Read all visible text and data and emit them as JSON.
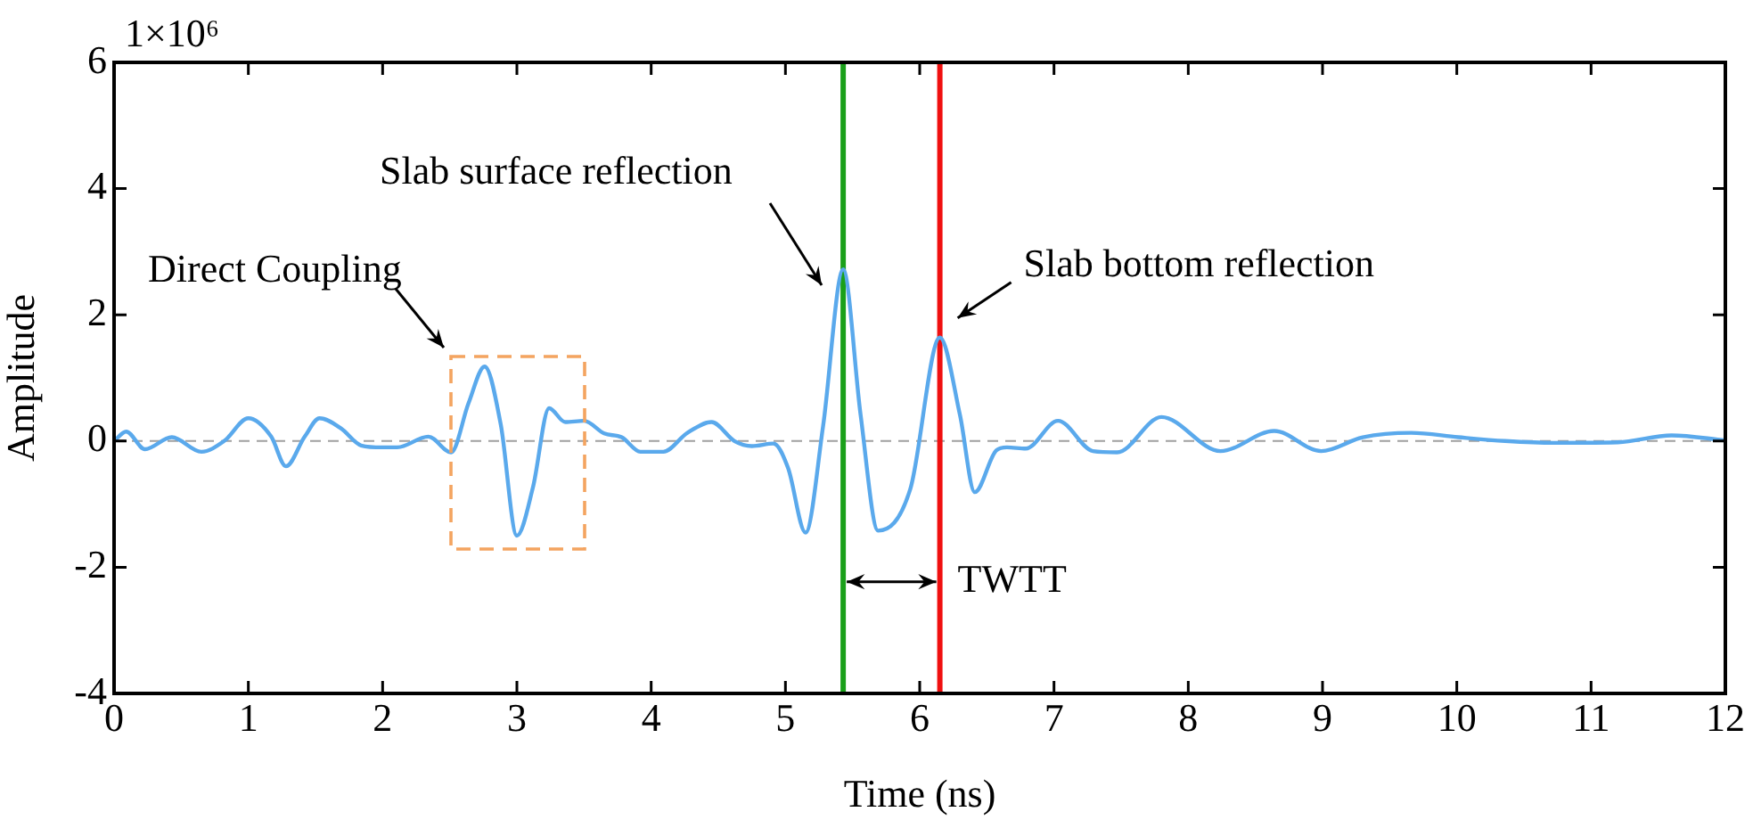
{
  "chart_data": {
    "type": "line",
    "xlabel": "Time (ns)",
    "ylabel": "Amplitude",
    "xlim": [
      0,
      12
    ],
    "xticks": [
      0,
      1,
      2,
      3,
      4,
      5,
      6,
      7,
      8,
      9,
      10,
      11,
      12
    ],
    "ylim": [
      -4,
      6
    ],
    "yticks": [
      -4,
      -2,
      0,
      2,
      4,
      6
    ],
    "grid": false,
    "legend": false,
    "marker": "none",
    "line_style": "solid",
    "series": [
      {
        "color": "#5aa9ec",
        "x": [
          0,
          0.09,
          0.23,
          0.43,
          0.65,
          0.82,
          1.0,
          1.17,
          1.28,
          1.42,
          1.53,
          1.69,
          1.84,
          2.0,
          2.11,
          2.34,
          2.51,
          2.64,
          2.76,
          2.88,
          3.0,
          3.12,
          3.24,
          3.36,
          3.5,
          3.65,
          3.78,
          3.92,
          4.09,
          4.27,
          4.45,
          4.62,
          4.75,
          4.91,
          5.02,
          5.15,
          5.28,
          5.43,
          5.56,
          5.69,
          5.93,
          6.15,
          6.3,
          6.41,
          6.57,
          6.65,
          6.79,
          7.03,
          7.29,
          7.47,
          7.8,
          8.24,
          8.64,
          8.99,
          9.3,
          9.66,
          10.01,
          10.36,
          10.72,
          11.2,
          11.6,
          12.0
        ],
        "values": [
          0,
          0.15,
          -0.13,
          0.06,
          -0.17,
          0,
          0.36,
          0.07,
          -0.4,
          0.07,
          0.36,
          0.2,
          -0.07,
          -0.1,
          -0.1,
          0.07,
          -0.18,
          0.6,
          1.18,
          0.26,
          -1.5,
          -0.73,
          0.52,
          0.3,
          0.32,
          0.12,
          0.06,
          -0.17,
          -0.17,
          0.13,
          0.3,
          0,
          -0.08,
          -0.04,
          -0.43,
          -1.45,
          0.23,
          2.72,
          0.41,
          -1.42,
          -0.76,
          1.64,
          0.41,
          -0.81,
          -0.15,
          -0.1,
          -0.12,
          0.32,
          -0.16,
          -0.18,
          0.38,
          -0.16,
          0.16,
          -0.16,
          0.06,
          0.13,
          0.06,
          0,
          -0.03,
          -0.02,
          0.09,
          0.01
        ]
      }
    ],
    "ref_lines": [
      {
        "axis": "y",
        "value": 0,
        "color": "#a0a0a0",
        "line_style": "dashed"
      },
      {
        "axis": "x",
        "value": 5.43,
        "color": "#1aa01a",
        "line_style": "solid"
      },
      {
        "axis": "x",
        "value": 6.15,
        "color": "#f01010",
        "line_style": "solid"
      }
    ],
    "annotations": [
      "1×10⁶",
      "Direct Coupling",
      "Slab surface reflection",
      {
        "text": "Slab bottom reflection",
        "x": 6.15,
        "y": 1.64
      },
      {
        "text": "TWTT",
        "x": 6.15,
        "y": -2.23
      }
    ]
  }
}
